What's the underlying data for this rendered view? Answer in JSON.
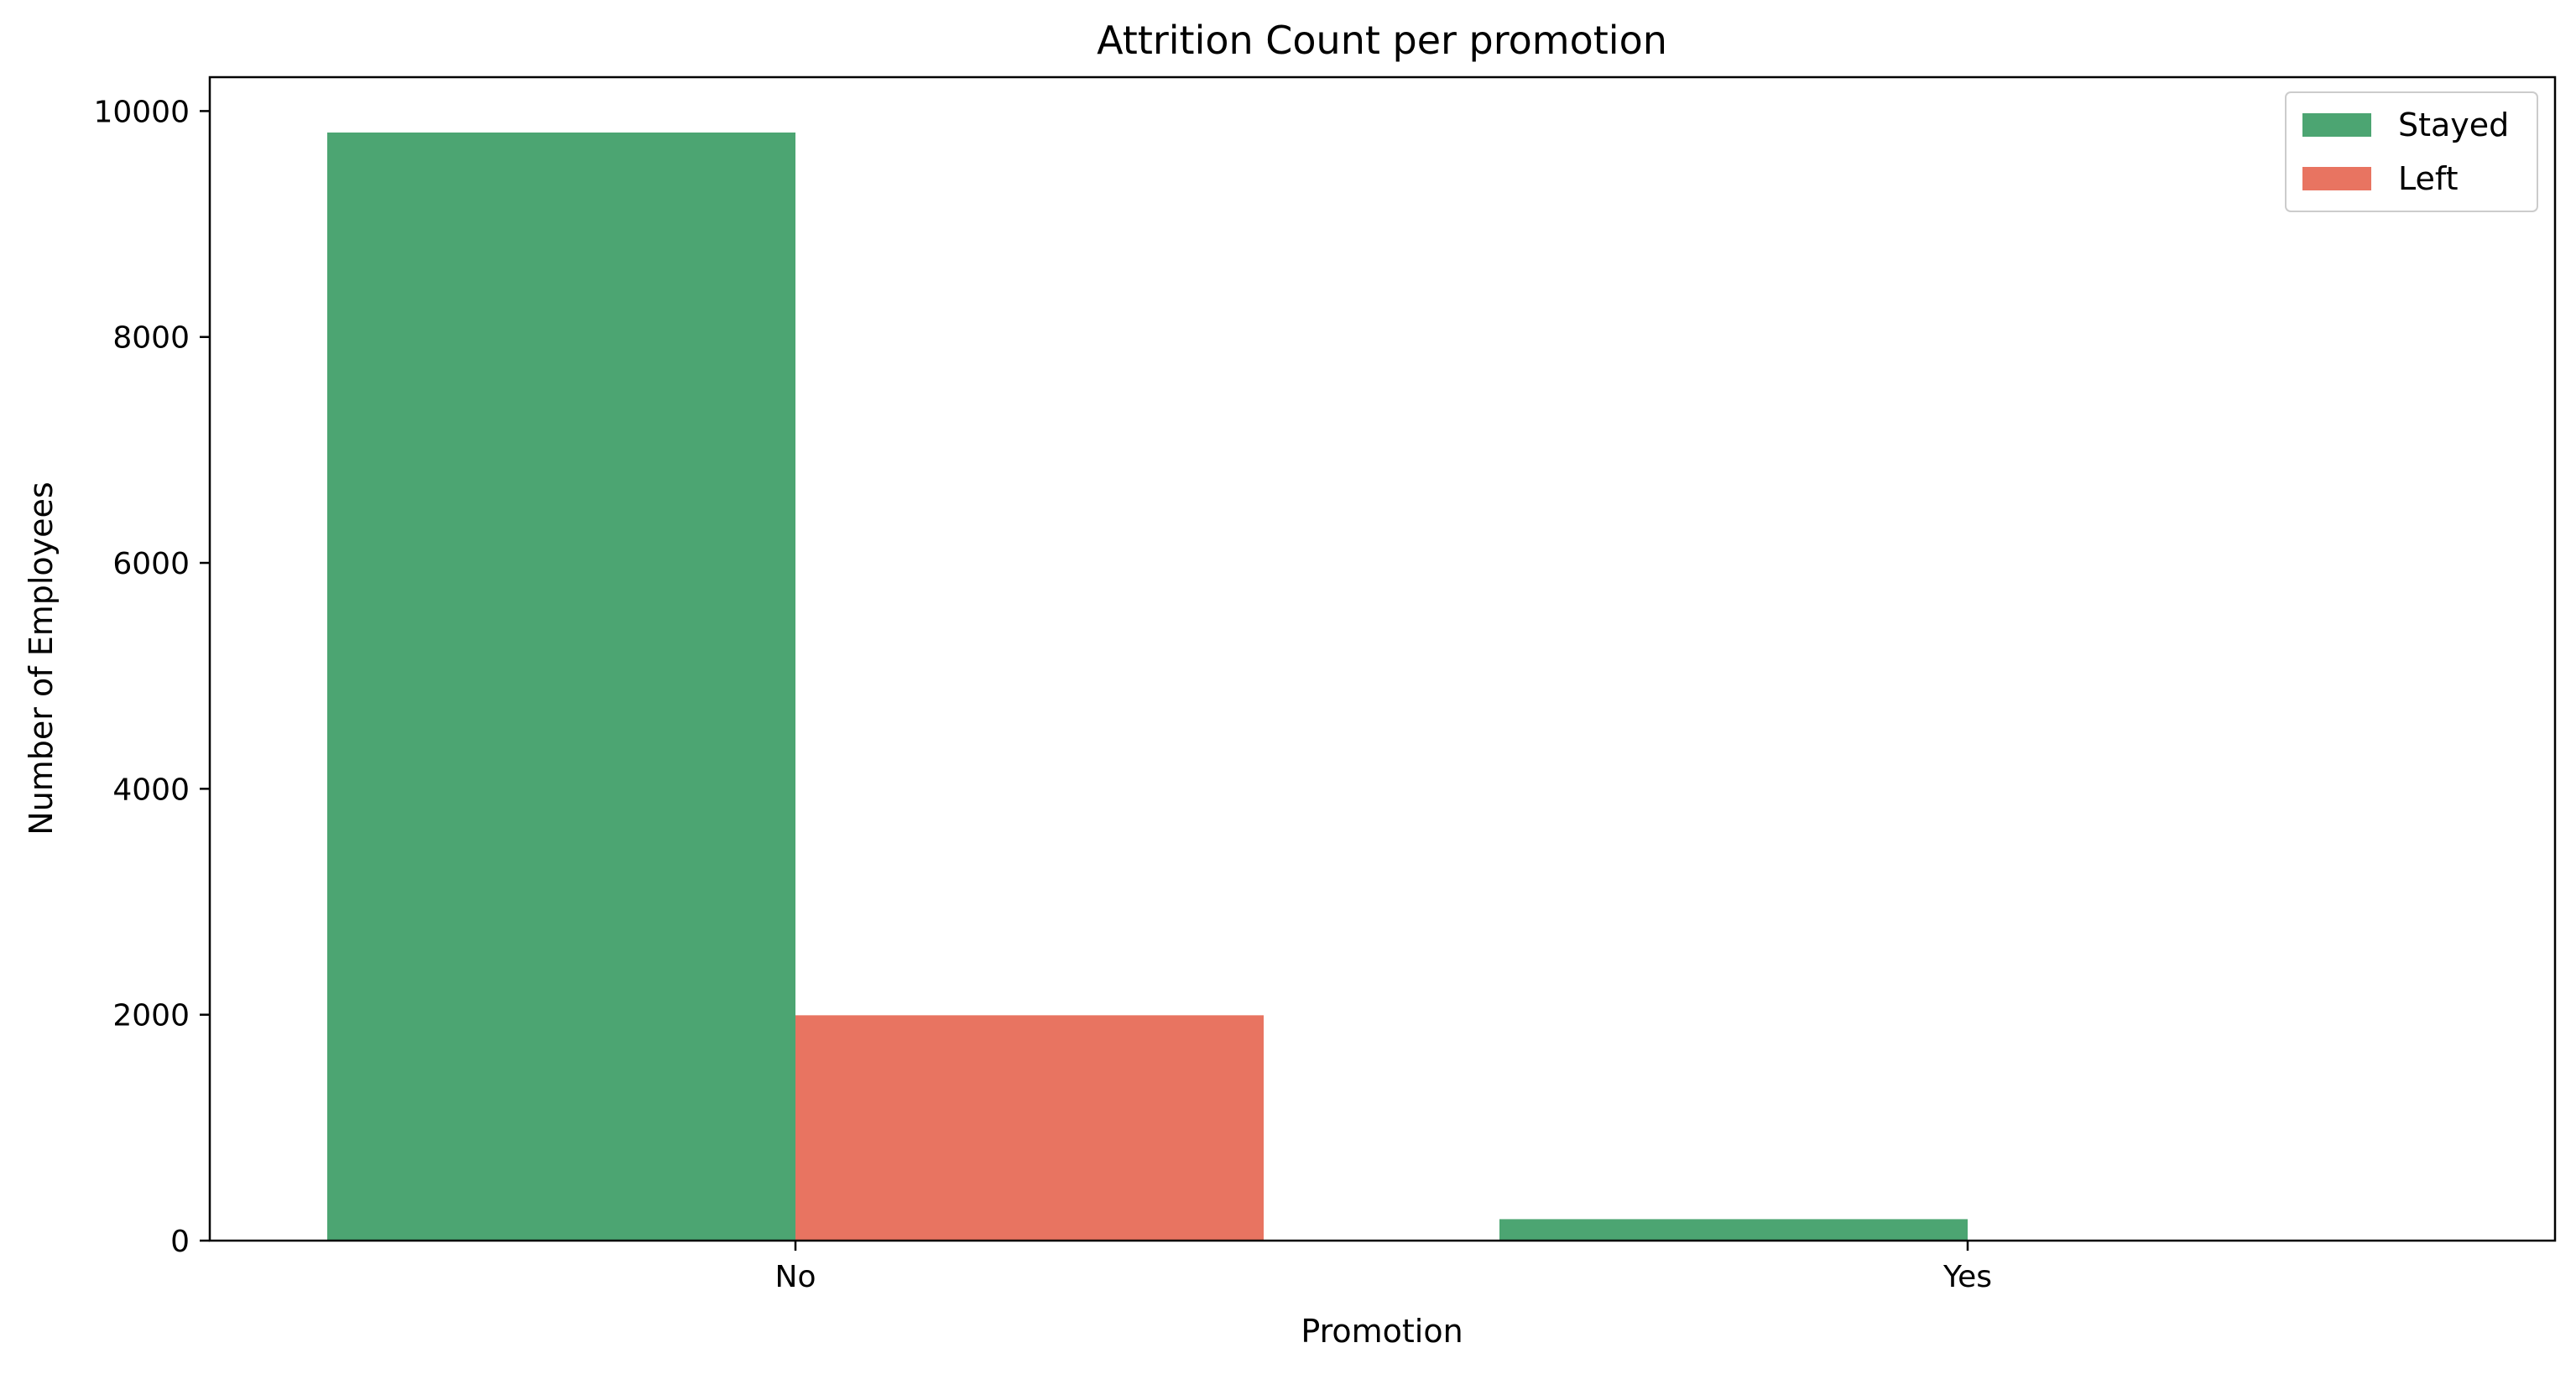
{
  "chart_data": {
    "type": "bar",
    "title": "Attrition Count per promotion",
    "xlabel": "Promotion",
    "ylabel": "Number of Employees",
    "categories": [
      "No",
      "Yes"
    ],
    "series": [
      {
        "name": "Stayed",
        "color": "#4ca572",
        "values": [
          9810,
          190
        ]
      },
      {
        "name": "Left",
        "color": "#e87461",
        "values": [
          1995,
          0
        ]
      }
    ],
    "ylim": [
      0,
      10300
    ],
    "yticks": [
      0,
      2000,
      4000,
      6000,
      8000,
      10000
    ],
    "legend_position": "top-right",
    "grid": false
  }
}
